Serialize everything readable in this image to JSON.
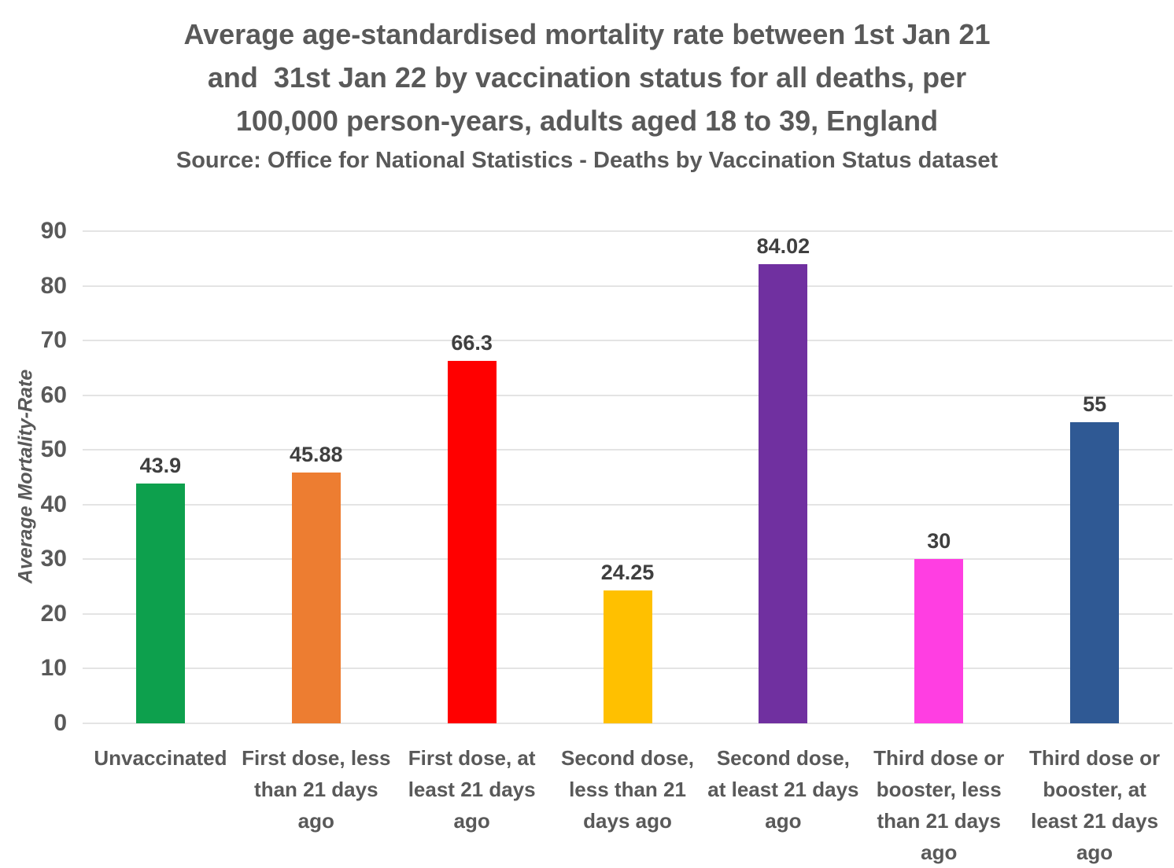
{
  "title_lines": [
    "Average age-standardised mortality rate between 1st Jan 21",
    "and  31st Jan 22 by vaccination status for all deaths, per",
    "100,000 person-years, adults aged 18 to 39, England"
  ],
  "source_line": "Source: Office for National Statistics - Deaths by Vaccination Status dataset",
  "chart_data": {
    "type": "bar",
    "title": "Average age-standardised mortality rate between 1st Jan 21 and 31st Jan 22 by vaccination status for all deaths, per 100,000 person-years, adults aged 18 to 39, England",
    "subtitle": "Source: Office for National Statistics - Deaths by Vaccination Status dataset",
    "categories": [
      "Unvaccinated",
      "First dose, less than 21 days ago",
      "First dose, at least 21 days ago",
      "Second dose, less than 21 days ago",
      "Second dose, at least 21 days ago",
      "Third dose or booster, less than 21 days ago",
      "Third dose or booster, at least 21 days ago"
    ],
    "values": [
      43.9,
      45.88,
      66.3,
      24.25,
      84.02,
      30,
      55
    ],
    "value_labels": [
      "43.9",
      "45.88",
      "66.3",
      "24.25",
      "84.02",
      "30",
      "55"
    ],
    "bar_colors": [
      "#0da04d",
      "#ed7d31",
      "#ff0000",
      "#ffc000",
      "#7030a0",
      "#ff3ee2",
      "#2f5994"
    ],
    "xlabel": "",
    "ylabel": "Average Mortality-Rate",
    "ylim": [
      0,
      90
    ],
    "ytick_step": 10,
    "yticks": [
      "90",
      "80",
      "70",
      "60",
      "50",
      "40",
      "30",
      "20",
      "10",
      "0"
    ],
    "grid": "horizontal",
    "legend": "none",
    "text_color": "#595959",
    "gridline_color": "#e4e4e4"
  }
}
